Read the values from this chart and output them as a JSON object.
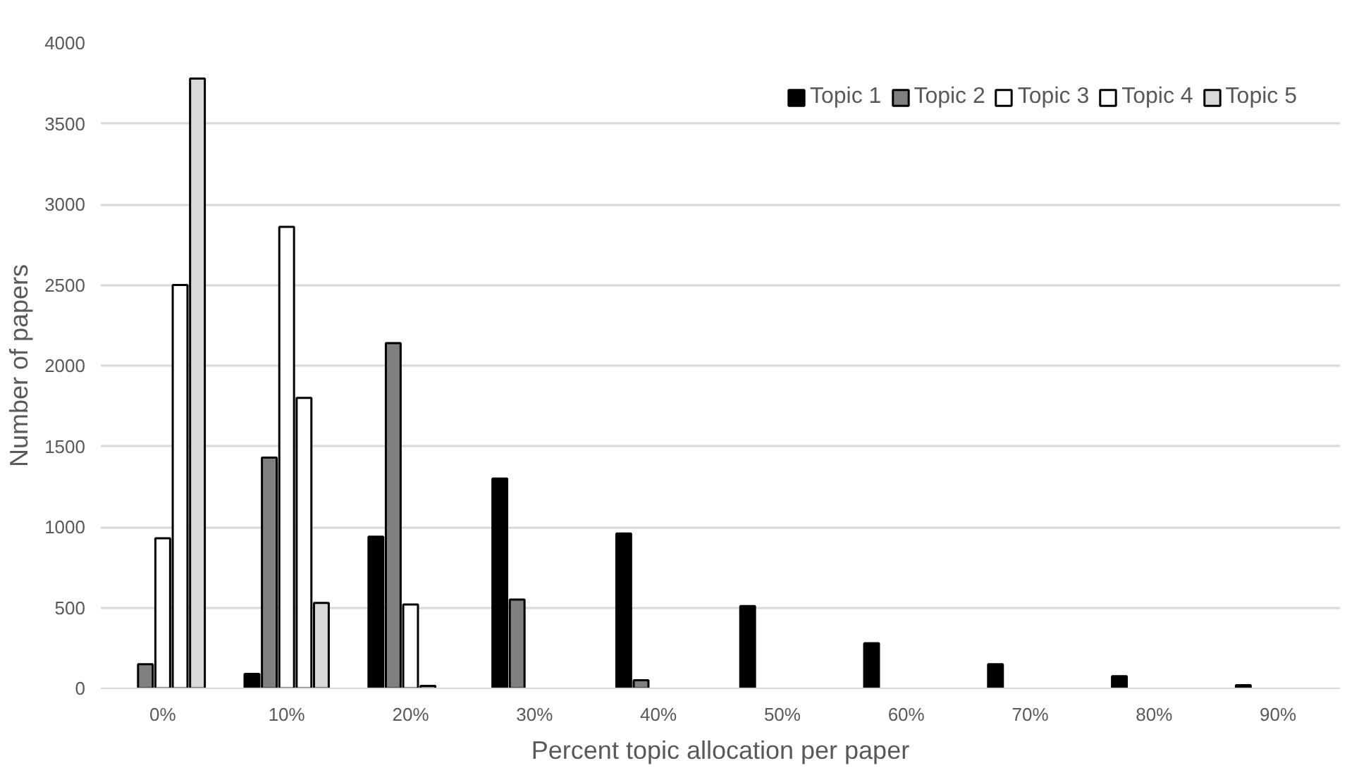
{
  "chart_data": {
    "type": "bar",
    "xlabel": "Percent topic allocation per paper",
    "ylabel": "Number of papers",
    "categories": [
      "0%",
      "10%",
      "20%",
      "30%",
      "40%",
      "50%",
      "60%",
      "70%",
      "80%",
      "90%"
    ],
    "series": [
      {
        "name": "Topic 1",
        "color": "#000000",
        "values": [
          null,
          90,
          940,
          1300,
          960,
          510,
          280,
          150,
          75,
          20
        ]
      },
      {
        "name": "Topic 2",
        "color": "#808080",
        "values": [
          150,
          1430,
          2140,
          550,
          50,
          null,
          null,
          null,
          null,
          null
        ]
      },
      {
        "name": "Topic 3",
        "color": "#ffffff",
        "values": [
          930,
          2860,
          520,
          null,
          null,
          null,
          null,
          null,
          null,
          null
        ]
      },
      {
        "name": "Topic 4",
        "color": "#ffffff",
        "values": [
          2500,
          1800,
          15,
          null,
          null,
          null,
          null,
          null,
          null,
          null
        ]
      },
      {
        "name": "Topic 5",
        "color": "#d9d9d9",
        "values": [
          3780,
          530,
          null,
          null,
          null,
          null,
          null,
          null,
          null,
          null
        ]
      }
    ],
    "ylim": [
      0,
      4000
    ],
    "yticks": [
      0,
      500,
      1000,
      1500,
      2000,
      2500,
      3000,
      3500,
      4000
    ],
    "grid": "y",
    "legend": "top right"
  }
}
